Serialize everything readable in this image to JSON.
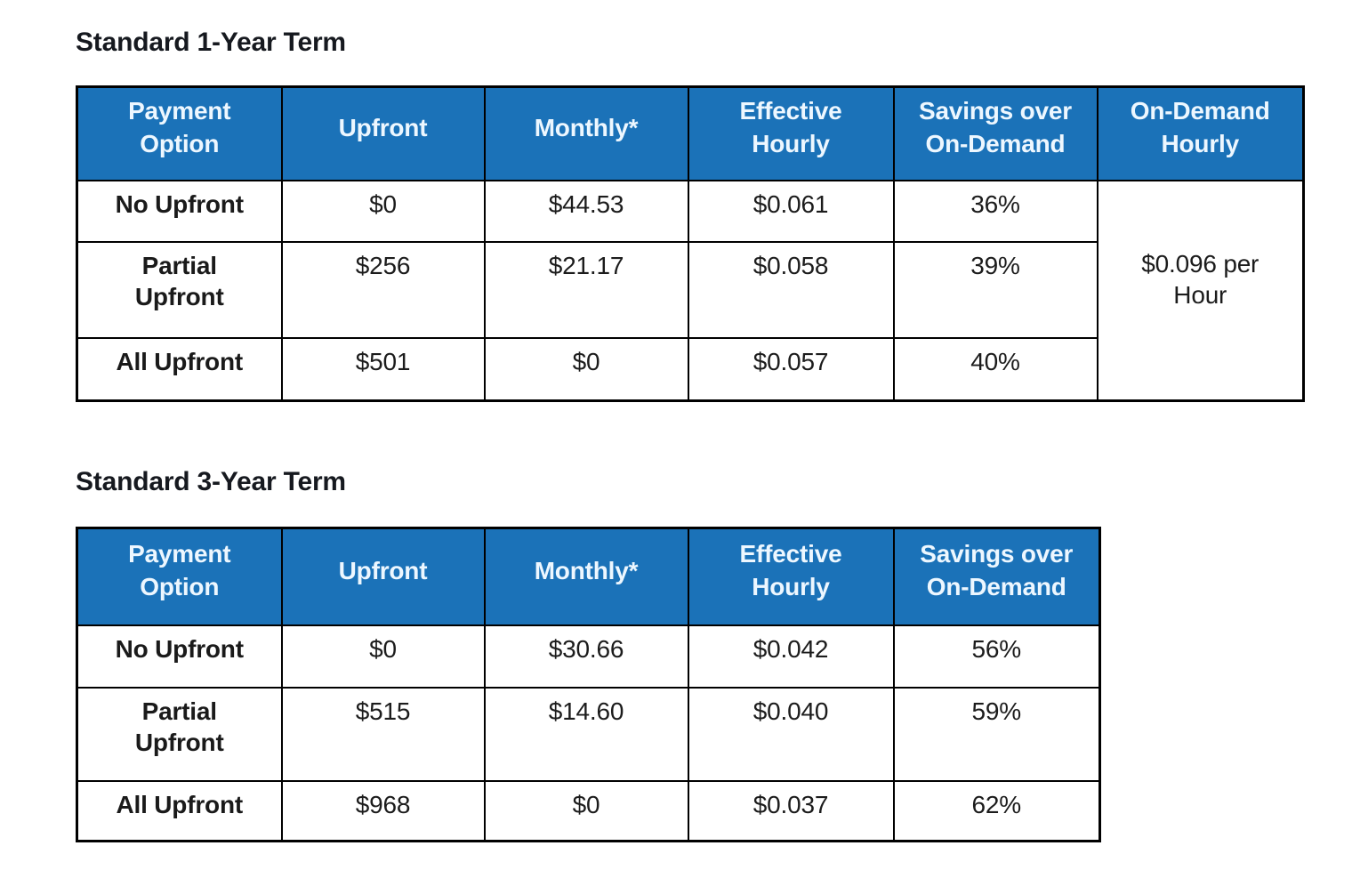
{
  "sections": [
    {
      "title": "Standard 1-Year Term",
      "columns": [
        "Payment Option",
        "Upfront",
        "Monthly*",
        "Effective Hourly",
        "Savings over On-Demand",
        "On-Demand Hourly"
      ],
      "rows": [
        {
          "payment_option": "No Upfront",
          "upfront": "$0",
          "monthly": "$44.53",
          "effective_hourly": "$0.061",
          "savings_over_on_demand": "36%"
        },
        {
          "payment_option": "Partial Upfront",
          "upfront": "$256",
          "monthly": "$21.17",
          "effective_hourly": "$0.058",
          "savings_over_on_demand": "39%"
        },
        {
          "payment_option": "All Upfront",
          "upfront": "$501",
          "monthly": "$0",
          "effective_hourly": "$0.057",
          "savings_over_on_demand": "40%"
        }
      ],
      "on_demand_hourly": "$0.096 per Hour"
    },
    {
      "title": "Standard 3-Year Term",
      "columns": [
        "Payment Option",
        "Upfront",
        "Monthly*",
        "Effective Hourly",
        "Savings over On-Demand"
      ],
      "rows": [
        {
          "payment_option": "No Upfront",
          "upfront": "$0",
          "monthly": "$30.66",
          "effective_hourly": "$0.042",
          "savings_over_on_demand": "56%"
        },
        {
          "payment_option": "Partial Upfront",
          "upfront": "$515",
          "monthly": "$14.60",
          "effective_hourly": "$0.040",
          "savings_over_on_demand": "59%"
        },
        {
          "payment_option": "All Upfront",
          "upfront": "$968",
          "monthly": "$0",
          "effective_hourly": "$0.037",
          "savings_over_on_demand": "62%"
        }
      ]
    }
  ],
  "colors": {
    "header_background": "#1B72B8",
    "header_text": "#EDF7FF",
    "border": "#000000",
    "body_text": "#1C1C1C",
    "page_background": "#FFFFFF"
  }
}
